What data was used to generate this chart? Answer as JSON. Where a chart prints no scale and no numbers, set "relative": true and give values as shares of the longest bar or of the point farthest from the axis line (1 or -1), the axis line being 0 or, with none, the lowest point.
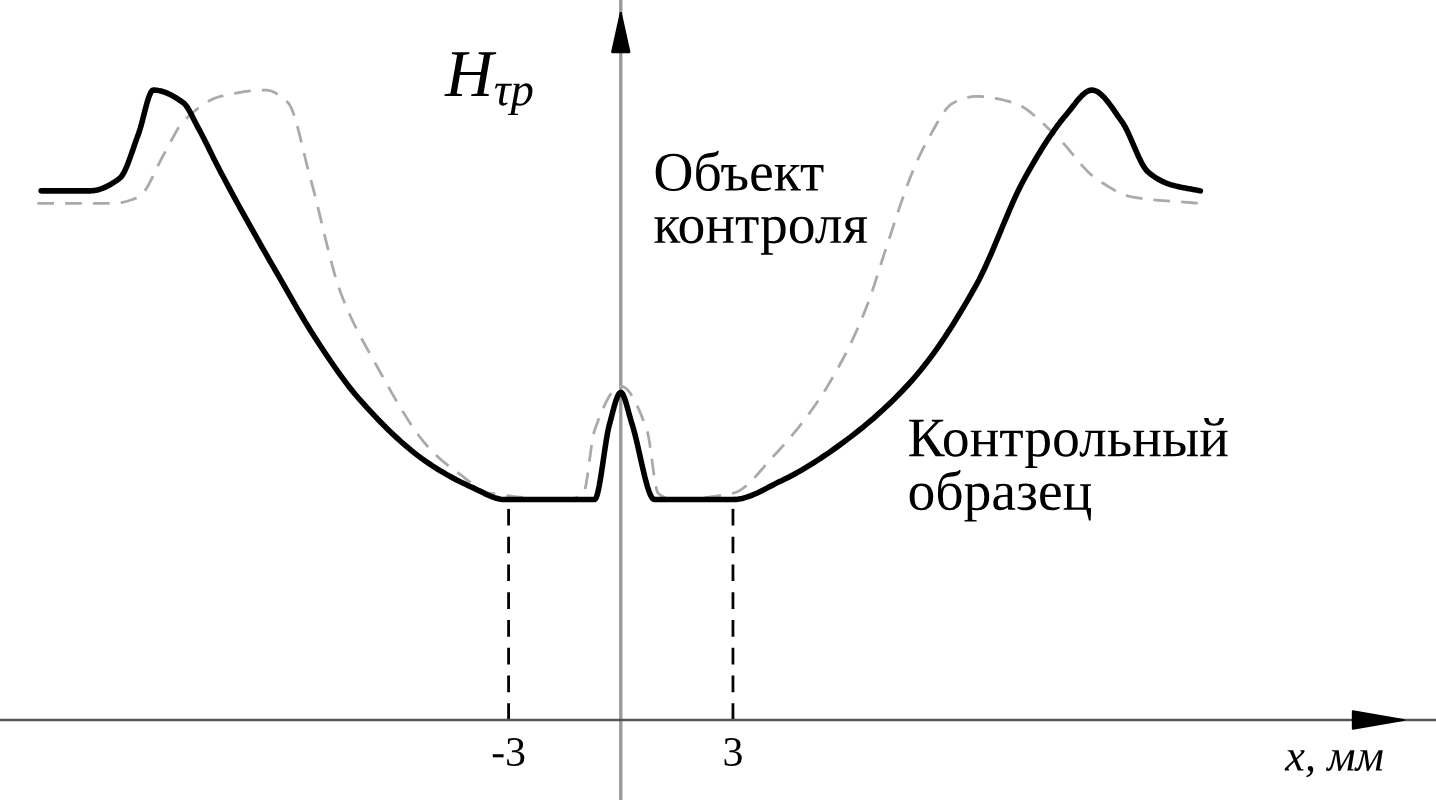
{
  "chart_data": {
    "type": "line",
    "relative": true,
    "ylabel": "H$_{τp}$",
    "xlabel": "x, мм",
    "xlim": [
      -16.6,
      21.8
    ],
    "xticks": [
      -3,
      3
    ],
    "tick_labels": "x",
    "ref_lines": [
      {
        "axis": "x",
        "value": -3,
        "color": "#000000",
        "line_style": "dashed"
      },
      {
        "axis": "x",
        "value": 3,
        "color": "#000000",
        "line_style": "dashed"
      }
    ],
    "series": [
      {
        "name": "Объект контроля",
        "color": "#aaaaaa",
        "line_style": "dashed",
        "x": [
          -15.6,
          -13.6,
          -12.9,
          -12.2,
          -11.7,
          -10.7,
          -9.5,
          -8.9,
          -8.3,
          -7.5,
          -6.6,
          -5.1,
          -4.3,
          -3.5,
          -1.4,
          -1.0,
          -0.7,
          0,
          0.7,
          1.0,
          1.4,
          3.0,
          4.1,
          5.2,
          6.0,
          6.6,
          7.1,
          7.8,
          8.2,
          8.9,
          9.5,
          10.5,
          11.6,
          12.7,
          13.7,
          15.5
        ],
        "values": [
          0.82,
          0.82,
          0.83,
          0.9,
          0.95,
          0.99,
          1.0,
          0.98,
          0.86,
          0.68,
          0.57,
          0.43,
          0.39,
          0.36,
          0.35,
          0.36,
          0.46,
          0.53,
          0.46,
          0.36,
          0.35,
          0.36,
          0.42,
          0.5,
          0.58,
          0.66,
          0.75,
          0.87,
          0.92,
          0.98,
          0.99,
          0.98,
          0.93,
          0.86,
          0.83,
          0.82
        ]
      },
      {
        "name": "Контрольный образец",
        "color": "#000000",
        "line_style": "solid",
        "x": [
          -15.5,
          -14.2,
          -13.4,
          -12.9,
          -12.5,
          -11.7,
          -11.3,
          -10.7,
          -9.2,
          -8.1,
          -7.0,
          -5.2,
          -4.0,
          -3.1,
          -1.3,
          -0.7,
          -0.3,
          0,
          0.3,
          0.9,
          2.0,
          3.0,
          4.3,
          5.7,
          7.8,
          9.5,
          10.8,
          11.9,
          12.6,
          13.4,
          14.1,
          14.7,
          15.5
        ],
        "values": [
          0.84,
          0.84,
          0.86,
          0.93,
          1.0,
          0.98,
          0.94,
          0.87,
          0.71,
          0.6,
          0.51,
          0.41,
          0.37,
          0.35,
          0.35,
          0.35,
          0.47,
          0.52,
          0.47,
          0.35,
          0.35,
          0.35,
          0.38,
          0.43,
          0.54,
          0.69,
          0.86,
          0.96,
          1.0,
          0.95,
          0.87,
          0.85,
          0.84
        ]
      }
    ]
  }
}
